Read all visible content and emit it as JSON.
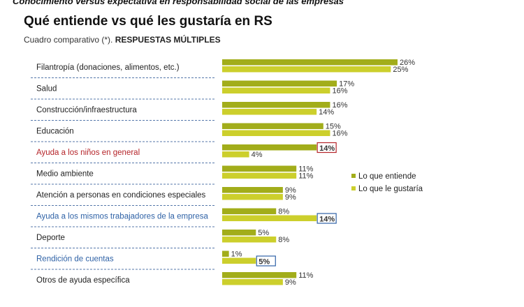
{
  "page": {
    "banner": "Conocimiento versus expectativa en responsabilidad social de las empresas",
    "title": "Qué entiende vs qué les gustaría en RS",
    "subtitle_prefix": "Cuadro comparativo (*). ",
    "subtitle_bold": "RESPUESTAS MÚLTIPLES"
  },
  "colors": {
    "entiende": "#a2ad1a",
    "gustaria": "#cccf2c",
    "separator": "#5577aa",
    "highlight_red": "#b5252a",
    "highlight_blue": "#2f62a6",
    "default_text": "#222222"
  },
  "chart_data": {
    "type": "bar",
    "orientation": "horizontal",
    "unit": "%",
    "xlim": [
      0,
      26
    ],
    "grid": false,
    "legend_position": "right",
    "categories": [
      "Filantropía (donaciones, alimentos, etc.)",
      "Salud",
      "Construcción/infraestructura",
      "Educación",
      "Ayuda a los niños en general",
      "Medio ambiente",
      "Atención a personas en condiciones especiales",
      "Ayuda a los mismos trabajadores de la empresa",
      "Deporte",
      "Rendición de cuentas",
      "Otros de ayuda específica"
    ],
    "category_colors": [
      "default",
      "default",
      "default",
      "default",
      "red",
      "default",
      "default",
      "blue",
      "default",
      "blue",
      "default"
    ],
    "series": [
      {
        "name": "Lo que entiende",
        "values": [
          26,
          17,
          16,
          15,
          14,
          11,
          9,
          8,
          5,
          1,
          11
        ]
      },
      {
        "name": "Lo que le gustaría",
        "values": [
          25,
          16,
          14,
          16,
          4,
          11,
          9,
          14,
          8,
          5,
          9
        ]
      }
    ],
    "boxed_labels": [
      {
        "category": 4,
        "series": 0,
        "color": "red"
      },
      {
        "category": 7,
        "series": 1,
        "color": "blue"
      },
      {
        "category": 9,
        "series": 1,
        "color": "blue"
      }
    ]
  }
}
